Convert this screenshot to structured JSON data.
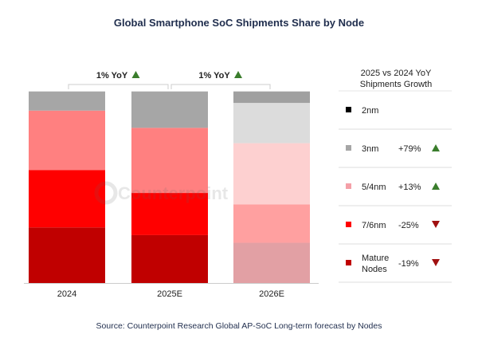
{
  "chart_data": {
    "type": "bar",
    "stacked": true,
    "title": "Global Smartphone SoC Shipments Share by Node",
    "categories": [
      "2024",
      "2025E",
      "2026E"
    ],
    "unit": "% share",
    "ylim": [
      0,
      100
    ],
    "series": [
      {
        "name": "Mature Nodes",
        "values": [
          29,
          25,
          21
        ],
        "color": "#c00000",
        "forecast_color": "#e2a0a4",
        "yoy": "-19%",
        "trend": "down"
      },
      {
        "name": "7/6nm",
        "values": [
          30,
          22,
          20
        ],
        "color": "#ff0000",
        "forecast_color": "#ffa0a0",
        "yoy": "-25%",
        "trend": "down"
      },
      {
        "name": "5/4nm",
        "values": [
          31,
          34,
          32
        ],
        "color": "#ff8080",
        "forecast_color": "#fdd0d0",
        "yoy": "+13%",
        "trend": "up"
      },
      {
        "name": "3nm",
        "values": [
          10,
          19,
          21
        ],
        "color": "#a6a6a6",
        "forecast_color": "#dcdcdc",
        "yoy": "+79%",
        "trend": "up"
      },
      {
        "name": "2nm",
        "values": [
          0,
          0,
          6
        ],
        "color": "#000000",
        "forecast_color": "#a0a0a0",
        "yoy": "",
        "trend": ""
      }
    ],
    "annotations": [
      {
        "text": "1% YoY",
        "from": "2024",
        "to": "2025E",
        "trend": "up"
      },
      {
        "text": "1% YoY",
        "from": "2025E",
        "to": "2026E",
        "trend": "up"
      }
    ],
    "legend_title": [
      "2025 vs 2024 YoY",
      "Shipments  Growth"
    ],
    "legend_placement": "right",
    "grid": false,
    "up_color": "#3a7d2c",
    "down_color": "#a01010",
    "source": "Source: Counterpoint Research Global AP-SoC Long-term forecast by Nodes",
    "watermark": "Counterpoint"
  }
}
